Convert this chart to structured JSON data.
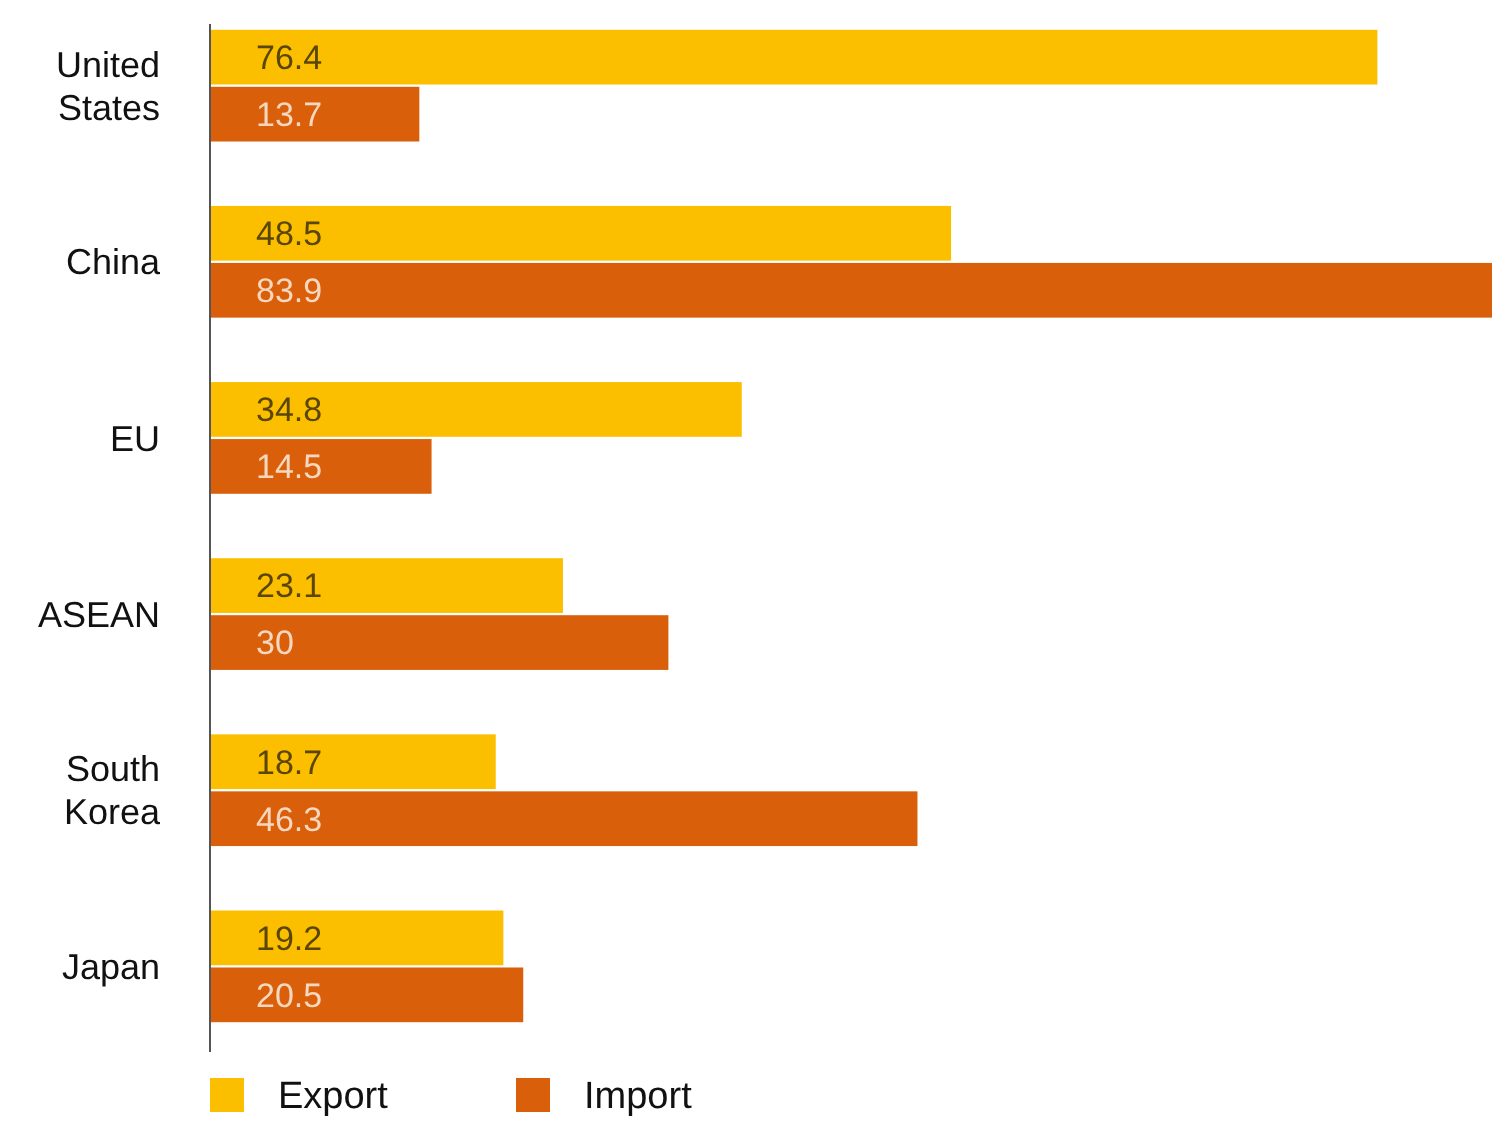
{
  "chart_data": {
    "type": "bar",
    "orientation": "horizontal",
    "data_labels": true,
    "legend": "bottom",
    "categories": [
      "United States",
      "China",
      "EU",
      "ASEAN",
      "South Korea",
      "Japan"
    ],
    "series": [
      {
        "name": "Export",
        "color": "#fbbf00",
        "values": [
          76.4,
          48.5,
          34.8,
          23.1,
          18.7,
          19.2
        ]
      },
      {
        "name": "Import",
        "color": "#d95f0a",
        "values": [
          13.7,
          83.9,
          14.5,
          30,
          46.3,
          20.5
        ]
      }
    ]
  }
}
